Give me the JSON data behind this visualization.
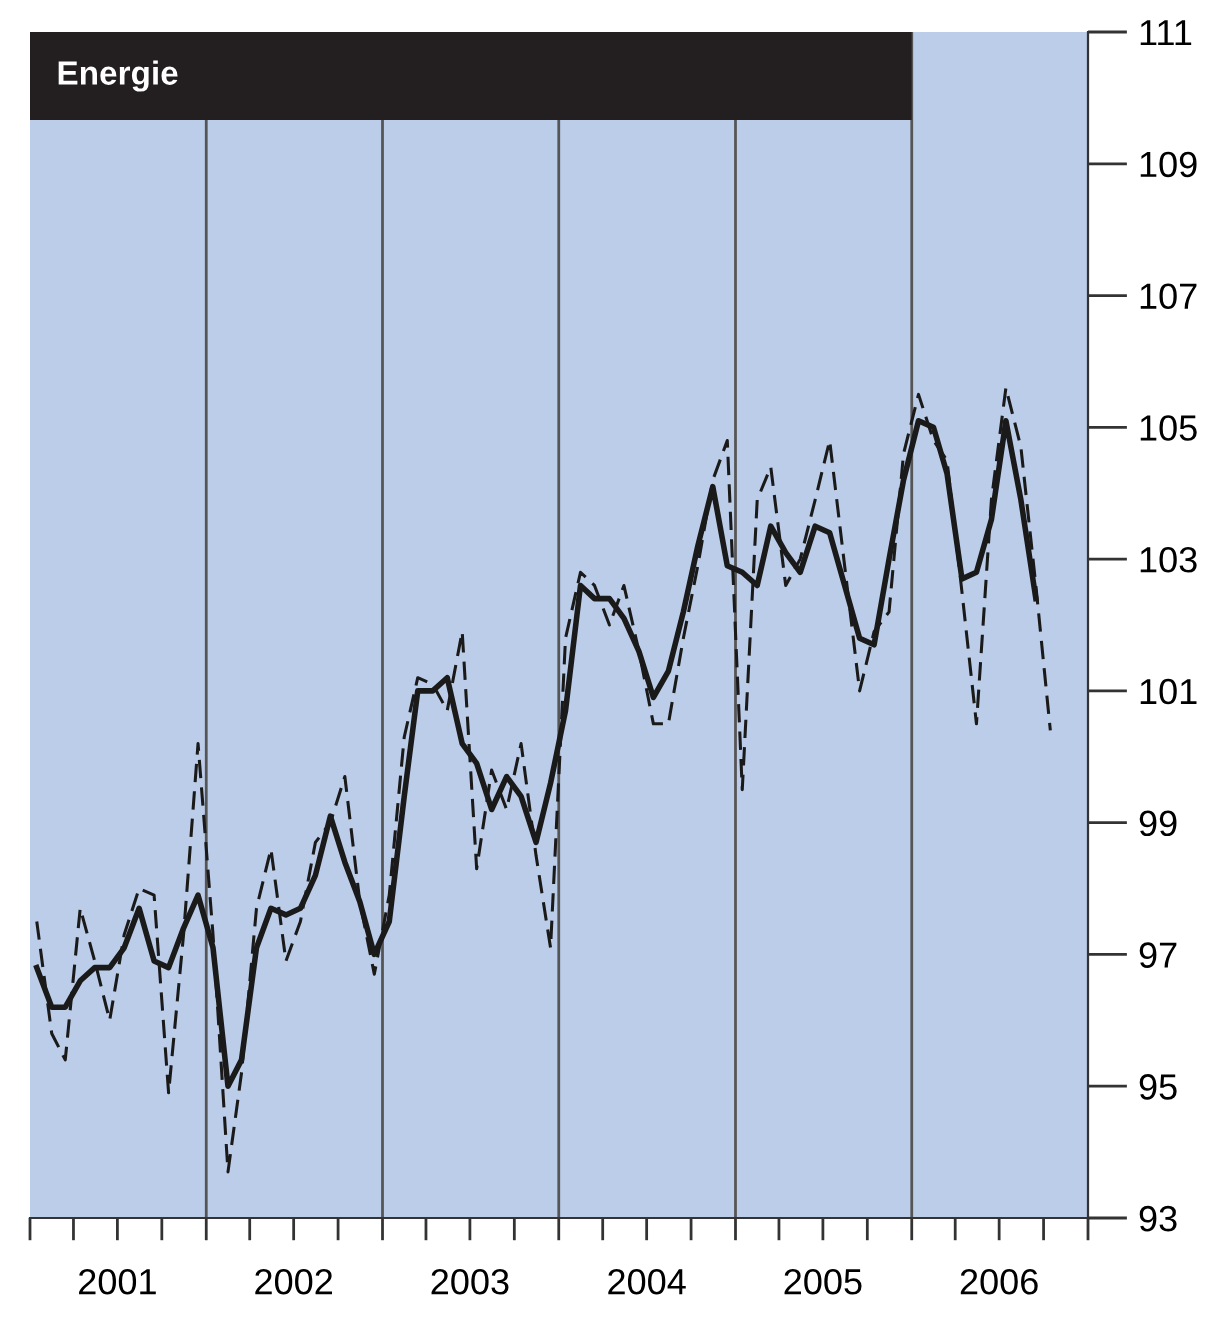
{
  "chart_data": {
    "type": "line",
    "title": "Energie",
    "x": [
      "2001-01-15",
      "2001-02-15",
      "2001-03-15",
      "2001-04-15",
      "2001-05-15",
      "2001-06-15",
      "2001-07-15",
      "2001-08-15",
      "2001-09-15",
      "2001-10-15",
      "2001-11-15",
      "2001-12-15",
      "2002-01-15",
      "2002-02-15",
      "2002-03-15",
      "2002-04-15",
      "2002-05-15",
      "2002-06-15",
      "2002-07-15",
      "2002-08-15",
      "2002-09-15",
      "2002-10-15",
      "2002-11-15",
      "2002-12-15",
      "2003-01-15",
      "2003-02-15",
      "2003-03-15",
      "2003-04-15",
      "2003-05-15",
      "2003-06-15",
      "2003-07-15",
      "2003-08-15",
      "2003-09-15",
      "2003-10-15",
      "2003-11-15",
      "2003-12-15",
      "2004-01-15",
      "2004-02-15",
      "2004-03-15",
      "2004-04-15",
      "2004-05-15",
      "2004-06-15",
      "2004-07-15",
      "2004-08-15",
      "2004-09-15",
      "2004-10-15",
      "2004-11-15",
      "2004-12-15",
      "2005-01-15",
      "2005-02-15",
      "2005-03-15",
      "2005-04-15",
      "2005-05-15",
      "2005-06-15",
      "2005-07-15",
      "2005-08-15",
      "2005-09-15",
      "2005-10-15",
      "2005-11-15",
      "2005-12-15",
      "2006-01-15",
      "2006-02-15",
      "2006-03-15",
      "2006-04-15",
      "2006-05-15",
      "2006-06-15",
      "2006-07-15",
      "2006-08-15",
      "2006-09-15",
      "2006-10-15"
    ],
    "series": [
      {
        "color": "#1a1a1a",
        "line_style": "solid",
        "values": [
          96.8,
          96.2,
          96.2,
          96.6,
          96.8,
          96.8,
          97.1,
          97.7,
          96.9,
          96.8,
          97.4,
          97.9,
          97.1,
          95.0,
          95.4,
          97.1,
          97.7,
          97.6,
          97.7,
          98.2,
          99.1,
          98.4,
          97.8,
          97.0,
          97.5,
          99.4,
          101.0,
          101.0,
          101.2,
          100.2,
          99.9,
          99.2,
          99.7,
          99.4,
          98.7,
          99.6,
          100.7,
          102.6,
          102.4,
          102.4,
          102.1,
          101.6,
          100.9,
          101.3,
          102.2,
          103.2,
          104.1,
          102.9,
          102.8,
          102.6,
          103.5,
          103.1,
          102.8,
          103.5,
          103.4,
          102.6,
          101.8,
          101.7,
          103.0,
          104.2,
          105.1,
          105.0,
          104.3,
          102.7,
          102.8,
          103.6,
          105.1,
          103.9,
          102.4,
          null
        ]
      },
      {
        "color": "#1a1a1a",
        "line_style": "dashed",
        "values": [
          97.5,
          95.8,
          95.4,
          97.7,
          96.9,
          96.0,
          97.3,
          98.0,
          97.9,
          94.9,
          97.3,
          100.2,
          97.3,
          93.7,
          95.2,
          97.7,
          98.6,
          96.9,
          97.5,
          98.7,
          99.0,
          99.7,
          97.8,
          96.7,
          97.9,
          100.3,
          101.2,
          101.1,
          100.7,
          101.9,
          98.3,
          99.8,
          99.2,
          100.2,
          98.5,
          97.1,
          101.8,
          102.8,
          102.6,
          102.0,
          102.6,
          101.6,
          100.5,
          100.5,
          101.8,
          102.9,
          104.2,
          104.8,
          99.5,
          103.9,
          104.4,
          102.6,
          103.0,
          103.9,
          104.8,
          102.9,
          101.0,
          101.9,
          102.2,
          104.6,
          105.5,
          104.8,
          104.5,
          102.5,
          100.5,
          103.9,
          105.6,
          104.7,
          102.6,
          100.4
        ]
      }
    ],
    "xlim": [
      "2001-01-01",
      "2007-01-01"
    ],
    "xticks": [
      {
        "value": "2001-01-01",
        "label": null
      },
      {
        "value": "2001-04-01",
        "label": null
      },
      {
        "value": "2001-07-01",
        "label": "2001"
      },
      {
        "value": "2001-10-01",
        "label": null
      },
      {
        "value": "2002-01-01",
        "label": null
      },
      {
        "value": "2002-04-01",
        "label": null
      },
      {
        "value": "2002-07-01",
        "label": "2002"
      },
      {
        "value": "2002-10-01",
        "label": null
      },
      {
        "value": "2003-01-01",
        "label": null
      },
      {
        "value": "2003-04-01",
        "label": null
      },
      {
        "value": "2003-07-01",
        "label": "2003"
      },
      {
        "value": "2003-10-01",
        "label": null
      },
      {
        "value": "2004-01-01",
        "label": null
      },
      {
        "value": "2004-04-01",
        "label": null
      },
      {
        "value": "2004-07-01",
        "label": "2004"
      },
      {
        "value": "2004-10-01",
        "label": null
      },
      {
        "value": "2005-01-01",
        "label": null
      },
      {
        "value": "2005-04-01",
        "label": null
      },
      {
        "value": "2005-07-01",
        "label": "2005"
      },
      {
        "value": "2005-10-01",
        "label": null
      },
      {
        "value": "2006-01-01",
        "label": null
      },
      {
        "value": "2006-04-01",
        "label": null
      },
      {
        "value": "2006-07-01",
        "label": "2006"
      },
      {
        "value": "2006-10-01",
        "label": null
      },
      {
        "value": "2007-01-01",
        "label": null
      }
    ],
    "ylim": [
      93,
      111
    ],
    "yticks": [
      93,
      95,
      97,
      99,
      101,
      103,
      105,
      107,
      109,
      111
    ],
    "ref_lines": [
      {
        "axis": "x",
        "value": "2002-01-01",
        "color": "#555555"
      },
      {
        "axis": "x",
        "value": "2003-01-01",
        "color": "#555555"
      },
      {
        "axis": "x",
        "value": "2004-01-01",
        "color": "#555555"
      },
      {
        "axis": "x",
        "value": "2005-01-01",
        "color": "#555555"
      },
      {
        "axis": "x",
        "value": "2006-01-01",
        "color": "#555555"
      }
    ],
    "grid": false,
    "legend": false,
    "marker": "none"
  }
}
